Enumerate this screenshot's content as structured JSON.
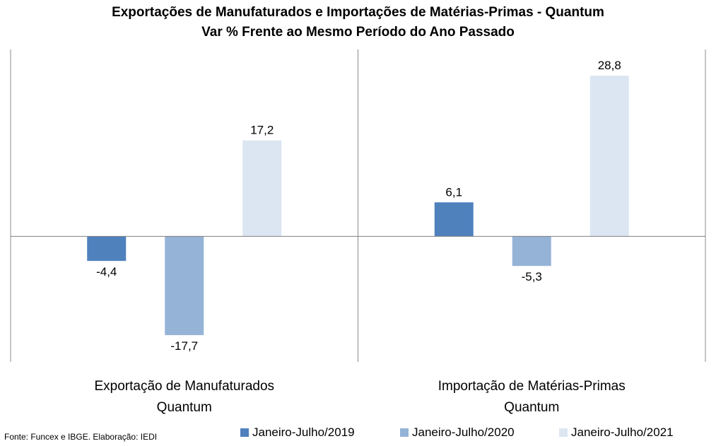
{
  "title_line1": "Exportações de Manufaturados e Importações de Matérias-Primas - Quantum",
  "title_line2": "Var % Frente ao Mesmo Período do Ano Passado",
  "source": "Fonte: Funcex e IBGE. Elaboração: IEDI",
  "chart_data": {
    "type": "bar",
    "categories": [
      [
        "Exportação de Manufaturados",
        "Quantum"
      ],
      [
        "Importação de Matérias-Primas",
        "Quantum"
      ]
    ],
    "series": [
      {
        "name": "Janeiro-Julho/2019",
        "color": "#4f81bd",
        "values": [
          -4.4,
          6.1
        ],
        "labels": [
          "-4,4",
          "6,1"
        ]
      },
      {
        "name": "Janeiro-Julho/2020",
        "color": "#95b3d7",
        "values": [
          -17.7,
          -5.3
        ],
        "labels": [
          "-17,7",
          "-5,3"
        ]
      },
      {
        "name": "Janeiro-Julho/2021",
        "color": "#dce6f2",
        "values": [
          17.2,
          28.8
        ],
        "labels": [
          "17,2",
          "28,8"
        ]
      }
    ],
    "ylim": [
      -22.5,
      33.5
    ],
    "grid": false,
    "legend_position": "bottom-right"
  }
}
